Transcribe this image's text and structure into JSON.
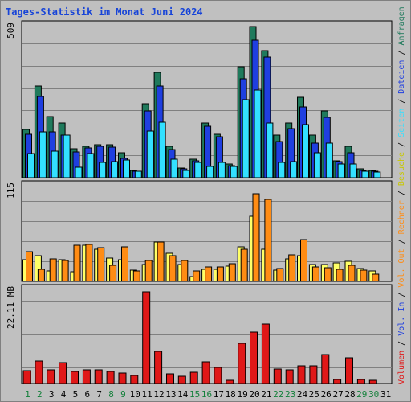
{
  "chart_data": {
    "type": "bar",
    "title": "Tages-Statistik im Monat Juni 2024",
    "categories": [
      "1",
      "2",
      "3",
      "4",
      "5",
      "6",
      "7",
      "8",
      "9",
      "10",
      "11",
      "12",
      "13",
      "14",
      "15",
      "16",
      "17",
      "18",
      "19",
      "20",
      "21",
      "22",
      "23",
      "24",
      "25",
      "26",
      "27",
      "28",
      "29",
      "30",
      "31"
    ],
    "weekend_days": [
      "1",
      "2",
      "8",
      "9",
      "15",
      "16",
      "22",
      "23",
      "29",
      "30"
    ],
    "panels": [
      {
        "name": "top",
        "ymax_label": "509",
        "ylim": [
          0,
          509
        ],
        "series": [
          {
            "name": "Anfragen",
            "color": "#1f7a5c",
            "values": [
              160,
              305,
              203,
              180,
              97,
              104,
              110,
              110,
              83,
              23,
              244,
              350,
              103,
              31,
              62,
              182,
              144,
              45,
              367,
              500,
              420,
              142,
              180,
              267,
              140,
              222,
              57,
              105,
              28,
              24,
              0
            ]
          },
          {
            "name": "Dateien",
            "color": "#1f3fe0",
            "values": [
              143,
              270,
              152,
              142,
              86,
              98,
              103,
              100,
              64,
              22,
              220,
              303,
              93,
              28,
              55,
              170,
              135,
              40,
              328,
              455,
              400,
              120,
              162,
              235,
              115,
              200,
              52,
              82,
              25,
              21,
              0
            ]
          },
          {
            "name": "Seiten",
            "color": "#33e0ff",
            "values": [
              80,
              152,
              88,
              140,
              35,
              79,
              50,
              53,
              58,
              20,
              155,
              185,
              60,
              25,
              50,
              36,
              50,
              36,
              258,
              290,
              180,
              50,
              52,
              175,
              82,
              115,
              45,
              44,
              22,
              19,
              0
            ]
          }
        ]
      },
      {
        "name": "middle",
        "ymax_label": "115",
        "ylim": [
          0,
          115
        ],
        "series": [
          {
            "name": "Besuche",
            "color": "#ffff66",
            "values": [
              26,
              30,
              12,
              26,
              11,
              43,
              38,
              28,
              26,
              13,
              20,
              47,
              33,
              20,
              6,
              14,
              14,
              18,
              41,
              77,
              38,
              13,
              27,
              30,
              20,
              20,
              22,
              24,
              15,
              12,
              0
            ]
          },
          {
            "name": "Rechner",
            "color": "#ff8c14",
            "values": [
              35,
              14,
              27,
              25,
              43,
              44,
              40,
              19,
              41,
              12,
              25,
              47,
              30,
              25,
              12,
              17,
              17,
              21,
              38,
              104,
              97,
              15,
              31,
              49,
              17,
              16,
              14,
              19,
              13,
              9,
              0
            ]
          }
        ]
      },
      {
        "name": "bottom",
        "ymax_label": "22.11 MB",
        "ylim": [
          0,
          22.11
        ],
        "series": [
          {
            "name": "Volumen",
            "color": "#e01818",
            "values": [
              2.9,
              5.2,
              3.1,
              4.8,
              2.7,
              3.1,
              3.1,
              2.8,
              2.4,
              1.9,
              21.2,
              7.4,
              2.2,
              1.6,
              2.6,
              5.1,
              3.7,
              0.8,
              9.2,
              11.9,
              13.7,
              3.4,
              3.1,
              4.1,
              4.1,
              6.7,
              1.0,
              5.9,
              0.9,
              0.8,
              0
            ]
          }
        ]
      }
    ],
    "right_legend": {
      "top": [
        {
          "text": "Anfragen",
          "color": "#1f7a5c"
        },
        {
          "text": "Dateien",
          "color": "#1f3fe0"
        },
        {
          "text": "Seiten",
          "color": "#33e0ff"
        },
        {
          "text": "Besuche",
          "color": "#c8c800"
        },
        {
          "text": "Rechner",
          "color": "#ff8c14"
        },
        {
          "text": "Vol. Out",
          "color": "#ff8c14"
        },
        {
          "text": "Vol. In",
          "color": "#1f3fe0"
        },
        {
          "text": "Volumen",
          "color": "#e01818"
        }
      ],
      "separator": " / "
    },
    "colors": {
      "background": "#c0c0c0",
      "plot_background": "#c0c0c0",
      "gridline": "#808080",
      "title": "#1744d8",
      "weekday_label": "#000000",
      "weekend_label": "#13803a"
    }
  }
}
